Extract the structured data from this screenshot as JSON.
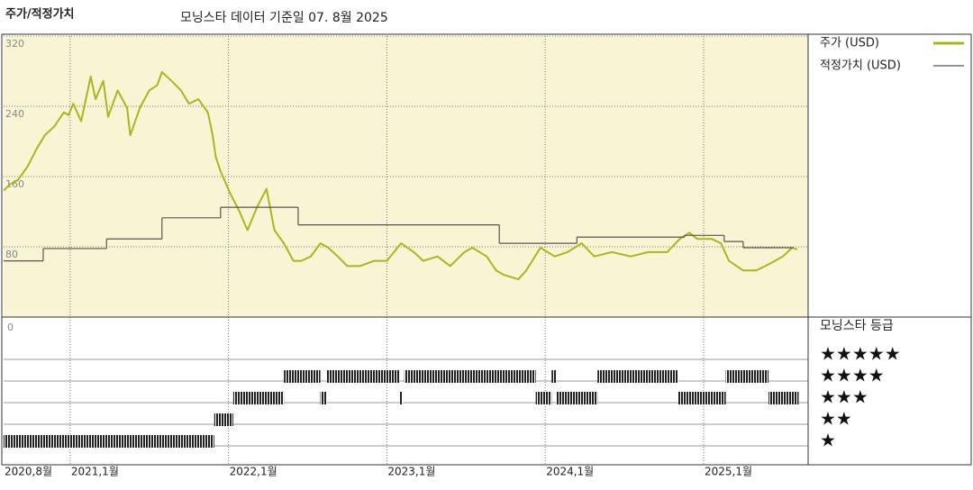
{
  "chart_data": [
    {
      "type": "line",
      "title": "주가/적정가치",
      "subtitle": "모닝스타 데이터 기준일 07. 8월 2025",
      "xlim": [
        2020.58,
        2025.66
      ],
      "xticks": [
        {
          "value": 2020.58,
          "label": "2020,8월"
        },
        {
          "value": 2021.0,
          "label": "2021,1월"
        },
        {
          "value": 2022.0,
          "label": "2022,1월"
        },
        {
          "value": 2023.0,
          "label": "2023,1월"
        },
        {
          "value": 2024.0,
          "label": "2024,1월"
        },
        {
          "value": 2025.0,
          "label": "2025,1월"
        }
      ],
      "ylim": [
        0,
        320
      ],
      "yticks": [
        80,
        160,
        240,
        320
      ],
      "grid": true,
      "background": "#f9f5d4",
      "series": [
        {
          "name": "주가 (USD)",
          "color": "#a9b61f",
          "x": [
            2020.58,
            2020.62,
            2020.67,
            2020.73,
            2020.79,
            2020.84,
            2020.9,
            2020.96,
            2020.99,
            2021.02,
            2021.07,
            2021.13,
            2021.16,
            2021.21,
            2021.24,
            2021.3,
            2021.36,
            2021.38,
            2021.44,
            2021.5,
            2021.55,
            2021.58,
            2021.64,
            2021.7,
            2021.75,
            2021.81,
            2021.87,
            2021.9,
            2021.92,
            2021.95,
            2022.01,
            2022.07,
            2022.12,
            2022.18,
            2022.24,
            2022.29,
            2022.35,
            2022.41,
            2022.46,
            2022.52,
            2022.58,
            2022.63,
            2022.69,
            2022.75,
            2022.83,
            2022.92,
            2023.0,
            2023.09,
            2023.17,
            2023.23,
            2023.32,
            2023.4,
            2023.49,
            2023.54,
            2023.63,
            2023.69,
            2023.74,
            2023.83,
            2023.88,
            2023.97,
            2024.06,
            2024.14,
            2024.23,
            2024.31,
            2024.42,
            2024.54,
            2024.65,
            2024.77,
            2024.85,
            2024.91,
            2024.96,
            2025.05,
            2025.11,
            2025.16,
            2025.25,
            2025.33,
            2025.39,
            2025.45,
            2025.5,
            2025.56,
            2025.59
          ],
          "values": [
            144,
            151,
            156,
            171,
            192,
            207,
            217,
            233,
            230,
            243,
            223,
            274,
            248,
            269,
            228,
            258,
            238,
            207,
            238,
            258,
            264,
            279,
            269,
            258,
            243,
            248,
            233,
            207,
            182,
            166,
            141,
            120,
            99,
            125,
            146,
            99,
            84,
            64,
            64,
            69,
            84,
            79,
            69,
            58,
            58,
            64,
            64,
            84,
            74,
            64,
            69,
            58,
            74,
            79,
            69,
            53,
            48,
            43,
            53,
            79,
            69,
            74,
            84,
            69,
            74,
            69,
            74,
            74,
            89,
            96,
            89,
            89,
            84,
            64,
            53,
            53,
            58,
            64,
            69,
            79,
            77
          ]
        },
        {
          "name": "적정가치 (USD)",
          "color": "#555555",
          "step": true,
          "x": [
            2020.58,
            2020.83,
            2021.23,
            2021.58,
            2021.95,
            2022.44,
            2023.71,
            2024.2,
            2024.88,
            2025.13,
            2025.25,
            2025.56
          ],
          "values": [
            64,
            78,
            89,
            113,
            125,
            105,
            84,
            91,
            93,
            86,
            79,
            79
          ]
        }
      ]
    },
    {
      "type": "timeline",
      "title": "모닝스타 등급",
      "scale_label": "0",
      "series": [
        {
          "name": "★",
          "start": [
            2020.58
          ],
          "end": [
            2021.91
          ]
        },
        {
          "name": "★★",
          "start": [
            2021.91
          ],
          "end": [
            2022.03
          ]
        },
        {
          "name": "★★★",
          "start": [
            2022.03,
            2022.58,
            2023.08,
            2023.94,
            2024.07,
            2024.84,
            2025.41
          ],
          "end": [
            2022.35,
            2022.62,
            2023.1,
            2024.04,
            2024.33,
            2025.14,
            2025.6
          ]
        },
        {
          "name": "★★★★",
          "start": [
            2022.35,
            2022.62,
            2023.11,
            2024.04,
            2024.33,
            2025.14
          ],
          "end": [
            2022.58,
            2023.08,
            2023.94,
            2024.07,
            2024.84,
            2025.41
          ]
        },
        {
          "name": "★★★★★",
          "start": [],
          "end": []
        }
      ]
    }
  ]
}
